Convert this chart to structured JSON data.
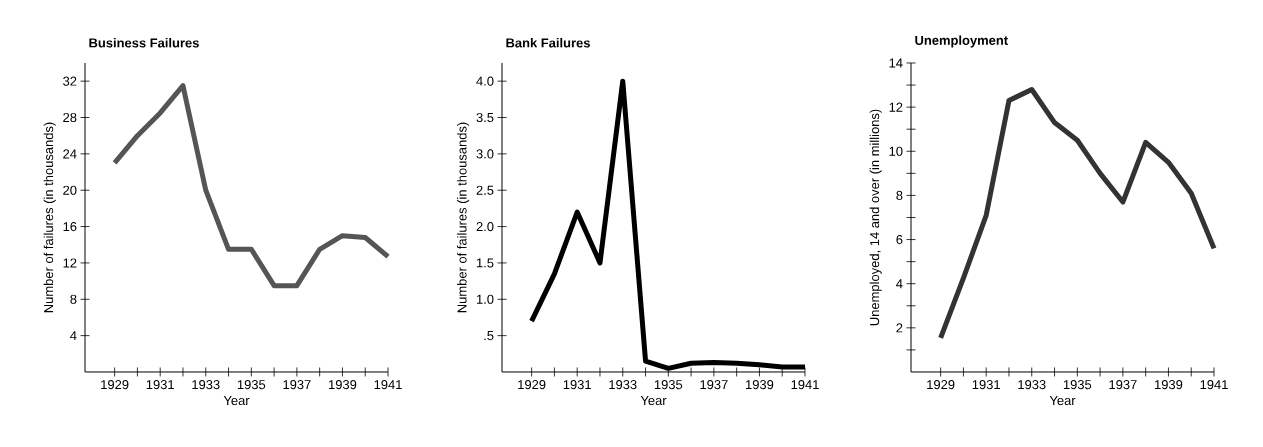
{
  "chart_data": [
    {
      "type": "line",
      "title": "Business Failures",
      "xlabel": "Year",
      "ylabel": "Number of failures (in thousands)",
      "color": "#555555",
      "x": [
        1929,
        1930,
        1931,
        1932,
        1933,
        1934,
        1935,
        1936,
        1937,
        1938,
        1939,
        1940,
        1941
      ],
      "values": [
        23,
        26,
        28.5,
        31.5,
        20,
        13.5,
        13.5,
        9.5,
        9.5,
        13.5,
        15,
        14.8,
        12.7
      ],
      "xlim": [
        1927.7,
        1941
      ],
      "ylim": [
        0,
        34
      ],
      "xticks": [
        1929,
        {
          "value": 1930,
          "label": null
        },
        1931,
        {
          "value": 1932,
          "label": null
        },
        1933,
        {
          "value": 1934,
          "label": null
        },
        1935,
        {
          "value": 1936,
          "label": null
        },
        1937,
        {
          "value": 1938,
          "label": null
        },
        1939,
        {
          "value": 1940,
          "label": null
        },
        1941
      ],
      "yticks": [
        4,
        8,
        12,
        16,
        20,
        24,
        28,
        32
      ]
    },
    {
      "type": "line",
      "title": "Bank Failures",
      "xlabel": "Year",
      "ylabel": "Number of failures (in thousands)",
      "color": "#000000",
      "x": [
        1929,
        1930,
        1931,
        1932,
        1933,
        1934,
        1935,
        1936,
        1937,
        1938,
        1939,
        1940,
        1941
      ],
      "values": [
        0.7,
        1.35,
        2.2,
        1.5,
        4.0,
        0.15,
        0.05,
        0.12,
        0.13,
        0.12,
        0.1,
        0.07,
        0.07
      ],
      "xlim": [
        1927.7,
        1941
      ],
      "ylim": [
        0,
        4.25
      ],
      "xticks": [
        1929,
        {
          "value": 1930,
          "label": null
        },
        1931,
        {
          "value": 1932,
          "label": null
        },
        1933,
        {
          "value": 1934,
          "label": null
        },
        1935,
        {
          "value": 1936,
          "label": null
        },
        1937,
        {
          "value": 1938,
          "label": null
        },
        1939,
        {
          "value": 1940,
          "label": null
        },
        1941
      ],
      "yticks": [
        {
          "value": 0.5,
          "label": ".5"
        },
        {
          "value": 1.0,
          "label": "1.0"
        },
        {
          "value": 1.5,
          "label": "1.5"
        },
        {
          "value": 2.0,
          "label": "2.0"
        },
        {
          "value": 2.5,
          "label": "2.5"
        },
        {
          "value": 3.0,
          "label": "3.0"
        },
        {
          "value": 3.5,
          "label": "3.5"
        },
        {
          "value": 4.0,
          "label": "4.0"
        }
      ]
    },
    {
      "type": "line",
      "title": "Unemployment",
      "xlabel": "Year",
      "ylabel": "Unemployed, 14 and over (in millions)",
      "color": "#333333",
      "x": [
        1929,
        1930,
        1931,
        1932,
        1933,
        1934,
        1935,
        1936,
        1937,
        1938,
        1939,
        1940,
        1941
      ],
      "values": [
        1.55,
        4.25,
        7.1,
        12.3,
        12.8,
        11.3,
        10.5,
        9.0,
        7.7,
        10.4,
        9.5,
        8.1,
        5.6
      ],
      "xlim": [
        1927.7,
        1941
      ],
      "ylim": [
        0,
        14
      ],
      "xticks": [
        1929,
        {
          "value": 1930,
          "label": null
        },
        1931,
        {
          "value": 1932,
          "label": null
        },
        1933,
        {
          "value": 1934,
          "label": null
        },
        1935,
        {
          "value": 1936,
          "label": null
        },
        1937,
        {
          "value": 1938,
          "label": null
        },
        1939,
        {
          "value": 1940,
          "label": null
        },
        1941
      ],
      "yticks": [
        {
          "value": 1,
          "label": null
        },
        2,
        {
          "value": 3,
          "label": null
        },
        4,
        {
          "value": 5,
          "label": null
        },
        6,
        {
          "value": 7,
          "label": null
        },
        8,
        {
          "value": 9,
          "label": null
        },
        10,
        {
          "value": 11,
          "label": null
        },
        12,
        {
          "value": 13,
          "label": null
        },
        14
      ]
    }
  ]
}
